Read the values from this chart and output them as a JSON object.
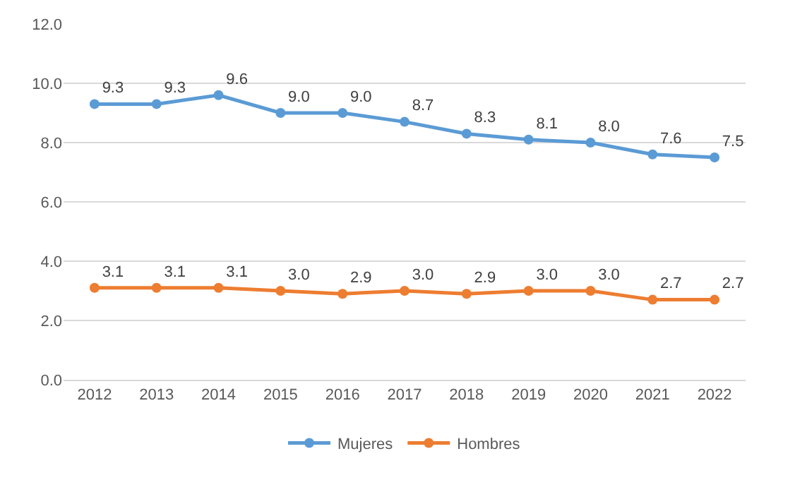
{
  "chart_data": {
    "type": "line",
    "categories": [
      "2012",
      "2013",
      "2014",
      "2015",
      "2016",
      "2017",
      "2018",
      "2019",
      "2020",
      "2021",
      "2022"
    ],
    "series": [
      {
        "name": "Mujeres",
        "color": "#5b9bd5",
        "values": [
          9.3,
          9.3,
          9.6,
          9.0,
          9.0,
          8.7,
          8.3,
          8.1,
          8.0,
          7.6,
          7.5
        ],
        "value_labels": [
          "9.3",
          "9.3",
          "9.6",
          "9.0",
          "9.0",
          "8.7",
          "8.3",
          "8.1",
          "8.0",
          "7.6",
          "7.5"
        ]
      },
      {
        "name": "Hombres",
        "color": "#ed7d31",
        "values": [
          3.1,
          3.1,
          3.1,
          3.0,
          2.9,
          3.0,
          2.9,
          3.0,
          3.0,
          2.7,
          2.7
        ],
        "value_labels": [
          "3.1",
          "3.1",
          "3.1",
          "3.0",
          "2.9",
          "3.0",
          "2.9",
          "3.0",
          "3.0",
          "2.7",
          "2.7"
        ]
      }
    ],
    "ylim": [
      0,
      12
    ],
    "yticks": [
      {
        "value": 0,
        "label": "0.0"
      },
      {
        "value": 2,
        "label": "2.0"
      },
      {
        "value": 4,
        "label": "4.0"
      },
      {
        "value": 6,
        "label": "6.0"
      },
      {
        "value": 8,
        "label": "8.0"
      },
      {
        "value": 10,
        "label": "10.0"
      },
      {
        "value": 12,
        "label": "12.0"
      }
    ],
    "grid": "y",
    "legend": "bottom",
    "marker": "circle",
    "line_style": "solid"
  }
}
